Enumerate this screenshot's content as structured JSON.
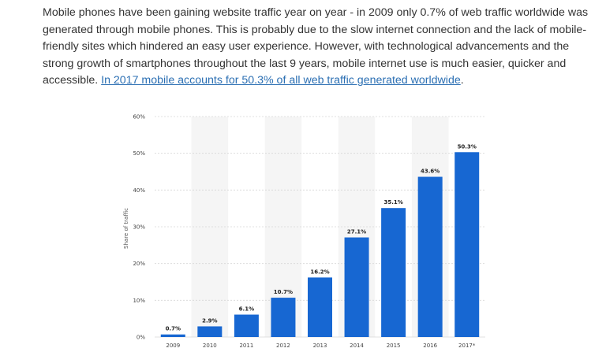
{
  "article": {
    "text": "Mobile phones have been gaining website traffic year on year - in 2009 only 0.7% of web traffic worldwide was generated through mobile phones. This is probably due to the slow internet connection and the lack of mobile-friendly sites which hindered an easy user experience. However, with technological advancements and the strong growth of smartphones throughout the last 9 years, mobile internet use is much easier, quicker and accessible.",
    "link_text": "In 2017 mobile accounts for 50.3% of all web traffic generated worldwide",
    "trailing": "."
  },
  "chart_data": {
    "type": "bar",
    "categories": [
      "2009",
      "2010",
      "2011",
      "2012",
      "2013",
      "2014",
      "2015",
      "2016",
      "2017*"
    ],
    "values": [
      0.7,
      2.9,
      6.1,
      10.7,
      16.2,
      27.1,
      35.1,
      43.6,
      50.3
    ],
    "data_labels": [
      "0.7%",
      "2.9%",
      "6.1%",
      "10.7%",
      "16.2%",
      "27.1%",
      "35.1%",
      "43.6%",
      "50.3%"
    ],
    "ylabel": "Share of traffic",
    "ylim": [
      0,
      60
    ],
    "yticks": [
      "0%",
      "10%",
      "20%",
      "30%",
      "40%",
      "50%",
      "60%"
    ],
    "grid": true,
    "bar_color": "#1767d2",
    "band_color": "#f5f5f5"
  }
}
